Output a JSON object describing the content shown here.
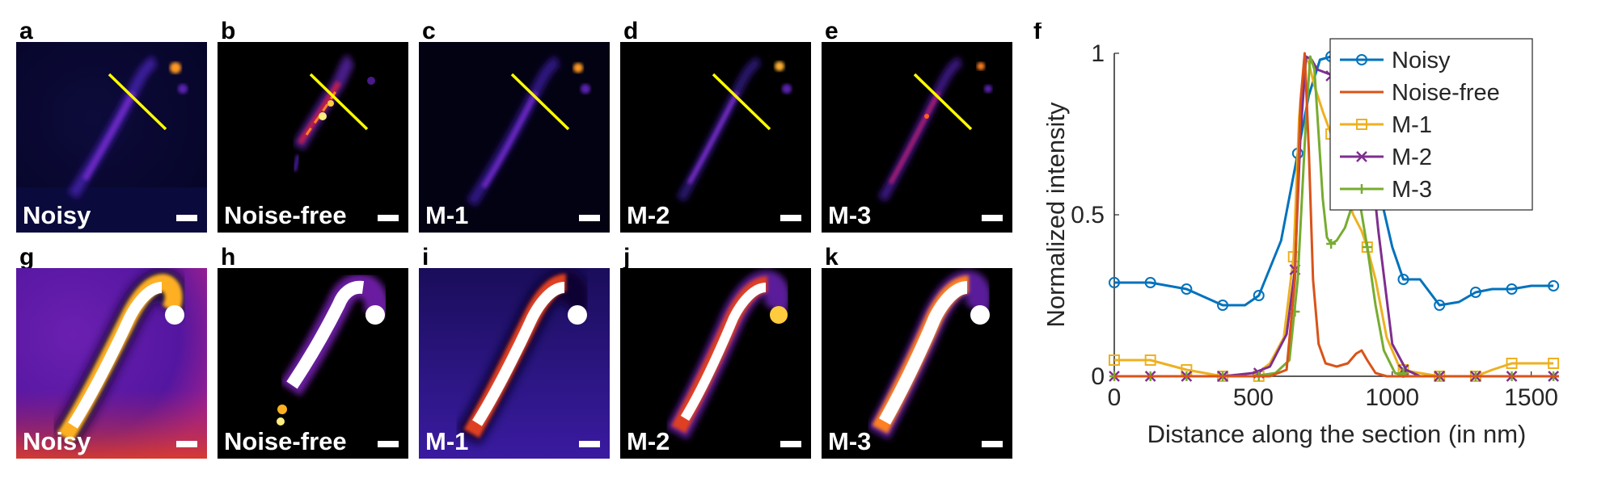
{
  "panels": {
    "top": [
      {
        "letter": "a",
        "label": "Noisy"
      },
      {
        "letter": "b",
        "label": "Noise-free"
      },
      {
        "letter": "c",
        "label": "M-1"
      },
      {
        "letter": "d",
        "label": "M-2"
      },
      {
        "letter": "e",
        "label": "M-3"
      }
    ],
    "bottom": [
      {
        "letter": "g",
        "label": "Noisy"
      },
      {
        "letter": "h",
        "label": "Noise-free"
      },
      {
        "letter": "i",
        "label": "M-1"
      },
      {
        "letter": "j",
        "label": "M-2"
      },
      {
        "letter": "k",
        "label": "M-3"
      }
    ]
  },
  "chart_letter": "f",
  "colors": {
    "section_line": "#ffff00",
    "noisy": "#0072bd",
    "noise_free": "#d95319",
    "m1": "#edb120",
    "m2": "#7e2f8e",
    "m3": "#77ac30"
  },
  "chart_data": {
    "type": "line",
    "title": "",
    "xlabel": "Distance along the section (in nm)",
    "ylabel": "Normalized intensity",
    "xlim": [
      0,
      1600
    ],
    "ylim": [
      0,
      1
    ],
    "xticks": [
      0,
      500,
      1000,
      1500
    ],
    "yticks": [
      0,
      0.5,
      1
    ],
    "legend_position": "top-right",
    "series": [
      {
        "name": "Noisy",
        "marker": "circle",
        "color": "#0072bd",
        "x": [
          0,
          130,
          260,
          390,
          470,
          520,
          600,
          660,
          700,
          740,
          780,
          810,
          850,
          880,
          920,
          960,
          1000,
          1040,
          1100,
          1170,
          1240,
          1300,
          1360,
          1430,
          1500,
          1580
        ],
        "y": [
          0.29,
          0.29,
          0.27,
          0.22,
          0.22,
          0.25,
          0.42,
          0.69,
          0.87,
          0.98,
          0.99,
          0.99,
          0.95,
          0.87,
          0.73,
          0.55,
          0.4,
          0.3,
          0.3,
          0.22,
          0.23,
          0.26,
          0.27,
          0.27,
          0.28,
          0.28
        ],
        "markers_x": [
          0,
          130,
          260,
          390,
          520,
          660,
          780,
          920,
          1040,
          1170,
          1300,
          1430,
          1580
        ],
        "markers_y": [
          0.29,
          0.29,
          0.27,
          0.22,
          0.25,
          0.69,
          0.99,
          0.73,
          0.3,
          0.22,
          0.26,
          0.27,
          0.28
        ]
      },
      {
        "name": "Noise-free",
        "marker": "none",
        "color": "#d95319",
        "x": [
          0,
          560,
          620,
          650,
          670,
          685,
          700,
          715,
          735,
          760,
          800,
          840,
          870,
          890,
          910,
          940,
          980,
          1600
        ],
        "y": [
          0,
          0,
          0.02,
          0.3,
          0.85,
          1.0,
          0.7,
          0.3,
          0.1,
          0.04,
          0.03,
          0.04,
          0.07,
          0.08,
          0.05,
          0.01,
          0,
          0
        ],
        "markers_x": [],
        "markers_y": []
      },
      {
        "name": "M-1",
        "marker": "square",
        "color": "#edb120",
        "x": [
          0,
          130,
          260,
          390,
          500,
          560,
          610,
          645,
          665,
          685,
          700,
          720,
          750,
          780,
          820,
          860,
          890,
          910,
          940,
          980,
          1030,
          1100,
          1170,
          1240,
          1300,
          1360,
          1430,
          1500,
          1580
        ],
        "y": [
          0.05,
          0.05,
          0.02,
          0,
          0,
          0.04,
          0.12,
          0.37,
          0.8,
          0.99,
          0.97,
          0.9,
          0.82,
          0.75,
          0.6,
          0.5,
          0.45,
          0.4,
          0.3,
          0.12,
          0.02,
          0.01,
          0,
          0,
          0,
          0.02,
          0.04,
          0.04,
          0.04
        ],
        "markers_x": [
          0,
          130,
          260,
          390,
          520,
          645,
          780,
          910,
          1040,
          1170,
          1300,
          1430,
          1580
        ],
        "markers_y": [
          0.05,
          0.05,
          0.02,
          0,
          0,
          0.37,
          0.75,
          0.4,
          0.02,
          0,
          0,
          0.04,
          0.04
        ]
      },
      {
        "name": "M-2",
        "marker": "x",
        "color": "#7e2f8e",
        "x": [
          0,
          390,
          500,
          560,
          620,
          650,
          670,
          690,
          710,
          730,
          760,
          790,
          820,
          860,
          890,
          920,
          950,
          1000,
          1050,
          1100,
          1600
        ],
        "y": [
          0,
          0,
          0.01,
          0.03,
          0.13,
          0.33,
          0.75,
          0.99,
          0.98,
          0.95,
          0.94,
          0.93,
          0.93,
          0.9,
          0.86,
          0.7,
          0.45,
          0.1,
          0.02,
          0,
          0
        ],
        "markers_x": [
          0,
          130,
          260,
          390,
          520,
          650,
          780,
          910,
          1040,
          1170,
          1300,
          1430,
          1580
        ],
        "markers_y": [
          0,
          0,
          0,
          0,
          0.01,
          0.33,
          0.93,
          0.7,
          0.02,
          0,
          0,
          0,
          0
        ]
      },
      {
        "name": "M-3",
        "marker": "plus",
        "color": "#77ac30",
        "x": [
          0,
          500,
          580,
          630,
          660,
          690,
          705,
          720,
          735,
          750,
          765,
          780,
          800,
          830,
          860,
          885,
          910,
          940,
          970,
          1010,
          1060,
          1600
        ],
        "y": [
          0,
          0,
          0.01,
          0.05,
          0.3,
          0.8,
          0.99,
          0.95,
          0.75,
          0.55,
          0.43,
          0.41,
          0.42,
          0.46,
          0.54,
          0.53,
          0.4,
          0.22,
          0.08,
          0.01,
          0,
          0
        ],
        "markers_x": [
          0,
          130,
          260,
          390,
          520,
          650,
          780,
          910,
          1040,
          1170,
          1300,
          1430,
          1580
        ],
        "markers_y": [
          0,
          0,
          0,
          0,
          0,
          0.2,
          0.41,
          0.4,
          0.01,
          0,
          0,
          0,
          0
        ]
      }
    ]
  }
}
